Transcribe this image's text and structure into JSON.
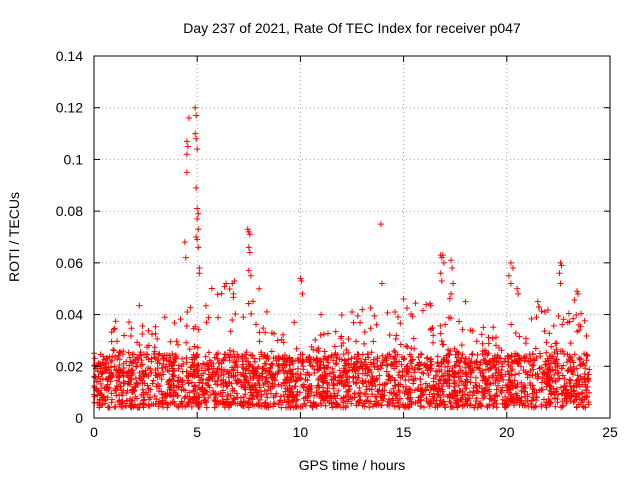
{
  "chart_data": {
    "type": "scatter",
    "title": "Day 237 of 2021, Rate Of TEC Index for receiver p047",
    "xlabel": "GPS time / hours",
    "ylabel": "ROTI / TECUs",
    "xlim": [
      0,
      25
    ],
    "ylim": [
      0,
      0.14
    ],
    "x_ticks": [
      0,
      5,
      10,
      15,
      20,
      25
    ],
    "y_ticks": [
      0,
      0.02,
      0.04,
      0.06,
      0.08,
      0.1,
      0.12,
      0.14
    ],
    "x_tick_labels": [
      "0",
      "5",
      "10",
      "15",
      "20",
      "25"
    ],
    "y_tick_labels": [
      "0",
      "0.02",
      "0.04",
      "0.06",
      "0.08",
      "0.1",
      "0.12",
      "0.14"
    ],
    "grid": true,
    "marker": "+",
    "color": "#ff0000",
    "baseline_band": {
      "x_range": [
        0,
        24
      ],
      "y_range": [
        0.004,
        0.03
      ]
    },
    "envelope_profile": {
      "x": [
        0,
        0.5,
        1,
        2,
        3,
        4,
        4.5,
        5,
        5.5,
        6,
        7,
        7.5,
        8,
        9,
        10,
        11,
        12,
        13,
        14,
        15,
        16,
        17,
        18,
        19,
        20,
        21,
        22,
        23,
        24
      ],
      "y_max": [
        0.026,
        0.02,
        0.043,
        0.045,
        0.04,
        0.045,
        0.047,
        0.055,
        0.05,
        0.052,
        0.055,
        0.05,
        0.045,
        0.035,
        0.03,
        0.038,
        0.04,
        0.042,
        0.045,
        0.045,
        0.045,
        0.05,
        0.04,
        0.035,
        0.045,
        0.04,
        0.048,
        0.05,
        0.035
      ]
    },
    "outliers": [
      {
        "x": 4.6,
        "y": 0.116
      },
      {
        "x": 4.9,
        "y": 0.12
      },
      {
        "x": 4.95,
        "y": 0.117
      },
      {
        "x": 4.5,
        "y": 0.107
      },
      {
        "x": 4.55,
        "y": 0.105
      },
      {
        "x": 4.5,
        "y": 0.102
      },
      {
        "x": 4.9,
        "y": 0.11
      },
      {
        "x": 4.95,
        "y": 0.108
      },
      {
        "x": 5.0,
        "y": 0.104
      },
      {
        "x": 4.5,
        "y": 0.095
      },
      {
        "x": 4.95,
        "y": 0.089
      },
      {
        "x": 5.0,
        "y": 0.081
      },
      {
        "x": 5.05,
        "y": 0.079
      },
      {
        "x": 5.0,
        "y": 0.077
      },
      {
        "x": 5.05,
        "y": 0.073
      },
      {
        "x": 4.95,
        "y": 0.07
      },
      {
        "x": 5.0,
        "y": 0.069
      },
      {
        "x": 5.05,
        "y": 0.066
      },
      {
        "x": 4.4,
        "y": 0.068
      },
      {
        "x": 4.45,
        "y": 0.062
      },
      {
        "x": 5.1,
        "y": 0.058
      },
      {
        "x": 5.1,
        "y": 0.056
      },
      {
        "x": 6.4,
        "y": 0.052
      },
      {
        "x": 6.7,
        "y": 0.052
      },
      {
        "x": 6.8,
        "y": 0.053
      },
      {
        "x": 7.45,
        "y": 0.073
      },
      {
        "x": 7.5,
        "y": 0.072
      },
      {
        "x": 7.55,
        "y": 0.071
      },
      {
        "x": 7.5,
        "y": 0.066
      },
      {
        "x": 7.55,
        "y": 0.064
      },
      {
        "x": 7.5,
        "y": 0.057
      },
      {
        "x": 7.6,
        "y": 0.055
      },
      {
        "x": 8.0,
        "y": 0.05
      },
      {
        "x": 10.0,
        "y": 0.054
      },
      {
        "x": 10.05,
        "y": 0.053
      },
      {
        "x": 10.1,
        "y": 0.048
      },
      {
        "x": 13.9,
        "y": 0.075
      },
      {
        "x": 13.95,
        "y": 0.052
      },
      {
        "x": 15.0,
        "y": 0.046
      },
      {
        "x": 16.8,
        "y": 0.063
      },
      {
        "x": 16.85,
        "y": 0.062
      },
      {
        "x": 16.9,
        "y": 0.063
      },
      {
        "x": 16.95,
        "y": 0.06
      },
      {
        "x": 16.8,
        "y": 0.056
      },
      {
        "x": 16.85,
        "y": 0.053
      },
      {
        "x": 17.3,
        "y": 0.061
      },
      {
        "x": 17.35,
        "y": 0.058
      },
      {
        "x": 17.4,
        "y": 0.052
      },
      {
        "x": 17.3,
        "y": 0.048
      },
      {
        "x": 20.2,
        "y": 0.06
      },
      {
        "x": 20.3,
        "y": 0.058
      },
      {
        "x": 20.1,
        "y": 0.055
      },
      {
        "x": 20.2,
        "y": 0.052
      },
      {
        "x": 20.5,
        "y": 0.05
      },
      {
        "x": 20.55,
        "y": 0.048
      },
      {
        "x": 22.6,
        "y": 0.06
      },
      {
        "x": 22.65,
        "y": 0.059
      },
      {
        "x": 22.55,
        "y": 0.056
      },
      {
        "x": 22.6,
        "y": 0.052
      },
      {
        "x": 23.4,
        "y": 0.049
      },
      {
        "x": 23.45,
        "y": 0.048
      },
      {
        "x": 23.5,
        "y": 0.036
      },
      {
        "x": 21.5,
        "y": 0.045
      },
      {
        "x": 21.55,
        "y": 0.043
      },
      {
        "x": 18.0,
        "y": 0.045
      },
      {
        "x": 12.5,
        "y": 0.041
      },
      {
        "x": 11.0,
        "y": 0.04
      },
      {
        "x": 9.7,
        "y": 0.037
      }
    ]
  }
}
